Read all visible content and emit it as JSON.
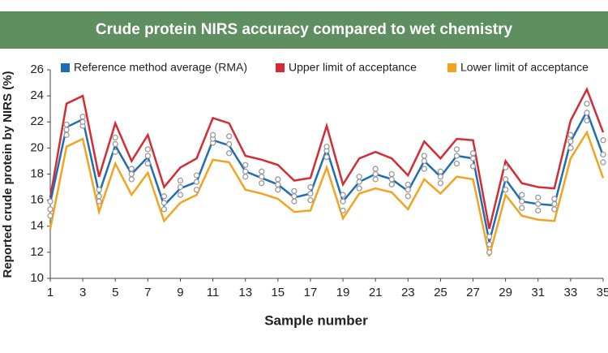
{
  "chart_data": {
    "type": "line",
    "title": "Crude protein NIRS accuracy compared to wet chemistry",
    "x_label": "Sample number",
    "y_label": "Reported crude protein by NIRS (%)",
    "x": [
      1,
      2,
      3,
      4,
      5,
      6,
      7,
      8,
      9,
      10,
      11,
      12,
      13,
      14,
      15,
      16,
      17,
      18,
      19,
      20,
      21,
      22,
      23,
      24,
      25,
      26,
      27,
      28,
      29,
      30,
      31,
      32,
      33,
      34,
      35
    ],
    "series": [
      {
        "name": "Reference method average (RMA)",
        "color": "#1f6db4",
        "values": [
          15.8,
          21.6,
          22.2,
          16.5,
          20.2,
          18.0,
          19.3,
          15.6,
          16.9,
          17.4,
          20.6,
          20.2,
          18.2,
          17.7,
          17.2,
          16.2,
          16.5,
          19.9,
          15.9,
          17.4,
          18.0,
          17.6,
          16.7,
          19.0,
          17.8,
          19.4,
          19.2,
          12.8,
          17.6,
          15.9,
          15.7,
          15.6,
          20.5,
          22.8,
          19.4
        ]
      },
      {
        "name": "Upper limit of acceptance",
        "color": "#d52b32",
        "values": [
          16.2,
          23.4,
          24.0,
          17.8,
          21.9,
          19.0,
          21.0,
          17.0,
          18.5,
          19.2,
          22.3,
          21.9,
          19.4,
          19.1,
          18.7,
          17.5,
          17.7,
          21.7,
          17.2,
          19.2,
          19.7,
          19.2,
          17.9,
          20.5,
          19.2,
          20.7,
          20.6,
          13.8,
          19.0,
          17.3,
          17.0,
          16.9,
          22.1,
          24.5,
          21.2
        ]
      },
      {
        "name": "Lower limit of acceptance",
        "color": "#f4a320",
        "values": [
          13.8,
          20.1,
          20.7,
          15.1,
          18.8,
          16.4,
          18.1,
          14.4,
          15.8,
          16.4,
          19.1,
          18.9,
          16.8,
          16.5,
          16.1,
          15.1,
          15.2,
          18.5,
          14.6,
          16.5,
          16.9,
          16.6,
          15.3,
          17.6,
          16.5,
          17.8,
          17.6,
          11.7,
          16.4,
          14.8,
          14.5,
          14.4,
          19.2,
          21.2,
          17.7
        ]
      }
    ],
    "readings": [
      [
        14.8,
        15.3,
        15.9
      ],
      [
        21.0,
        21.4,
        21.8
      ],
      [
        21.7,
        22.0,
        22.4
      ],
      [
        15.9,
        16.3,
        16.8
      ],
      [
        19.7,
        20.3,
        20.8
      ],
      [
        17.6,
        18.0,
        18.4
      ],
      [
        18.8,
        19.4,
        19.9
      ],
      [
        15.3,
        15.8,
        16.3
      ],
      [
        16.4,
        17.0,
        17.5
      ],
      [
        16.8,
        17.4,
        17.9
      ],
      [
        20.4,
        20.7,
        21.0
      ],
      [
        19.6,
        20.3,
        20.9
      ],
      [
        17.8,
        18.2,
        18.7
      ],
      [
        17.3,
        17.8,
        18.2
      ],
      [
        16.8,
        17.2,
        17.6
      ],
      [
        15.9,
        16.3,
        16.7
      ],
      [
        16.0,
        16.5,
        17.0
      ],
      [
        19.3,
        19.8,
        20.1
      ],
      [
        15.2,
        15.9,
        16.4
      ],
      [
        16.9,
        17.4,
        17.8
      ],
      [
        17.6,
        18.0,
        18.4
      ],
      [
        17.2,
        17.6,
        18.0
      ],
      [
        16.3,
        16.8,
        17.2
      ],
      [
        18.4,
        19.0,
        19.4
      ],
      [
        17.3,
        17.8,
        18.2
      ],
      [
        18.8,
        19.4,
        19.9
      ],
      [
        18.6,
        19.2,
        19.6
      ],
      [
        12.0,
        12.6,
        13.2
      ],
      [
        16.8,
        17.6,
        18.5
      ],
      [
        15.4,
        15.9,
        16.4
      ],
      [
        15.2,
        15.7,
        16.2
      ],
      [
        15.3,
        15.7,
        16.1
      ],
      [
        20.0,
        20.5,
        21.0
      ],
      [
        22.1,
        22.7,
        23.4
      ],
      [
        18.9,
        19.5,
        20.6
      ]
    ],
    "xlim": [
      1,
      35
    ],
    "ylim": [
      10,
      26
    ],
    "xticks": [
      1,
      3,
      5,
      7,
      9,
      11,
      13,
      15,
      17,
      19,
      21,
      23,
      25,
      27,
      29,
      31,
      33,
      35
    ],
    "yticks": [
      10,
      12,
      14,
      16,
      18,
      20,
      22,
      24,
      26
    ],
    "readings_color": "#9a9a9a",
    "grid": false,
    "legend": "top"
  }
}
